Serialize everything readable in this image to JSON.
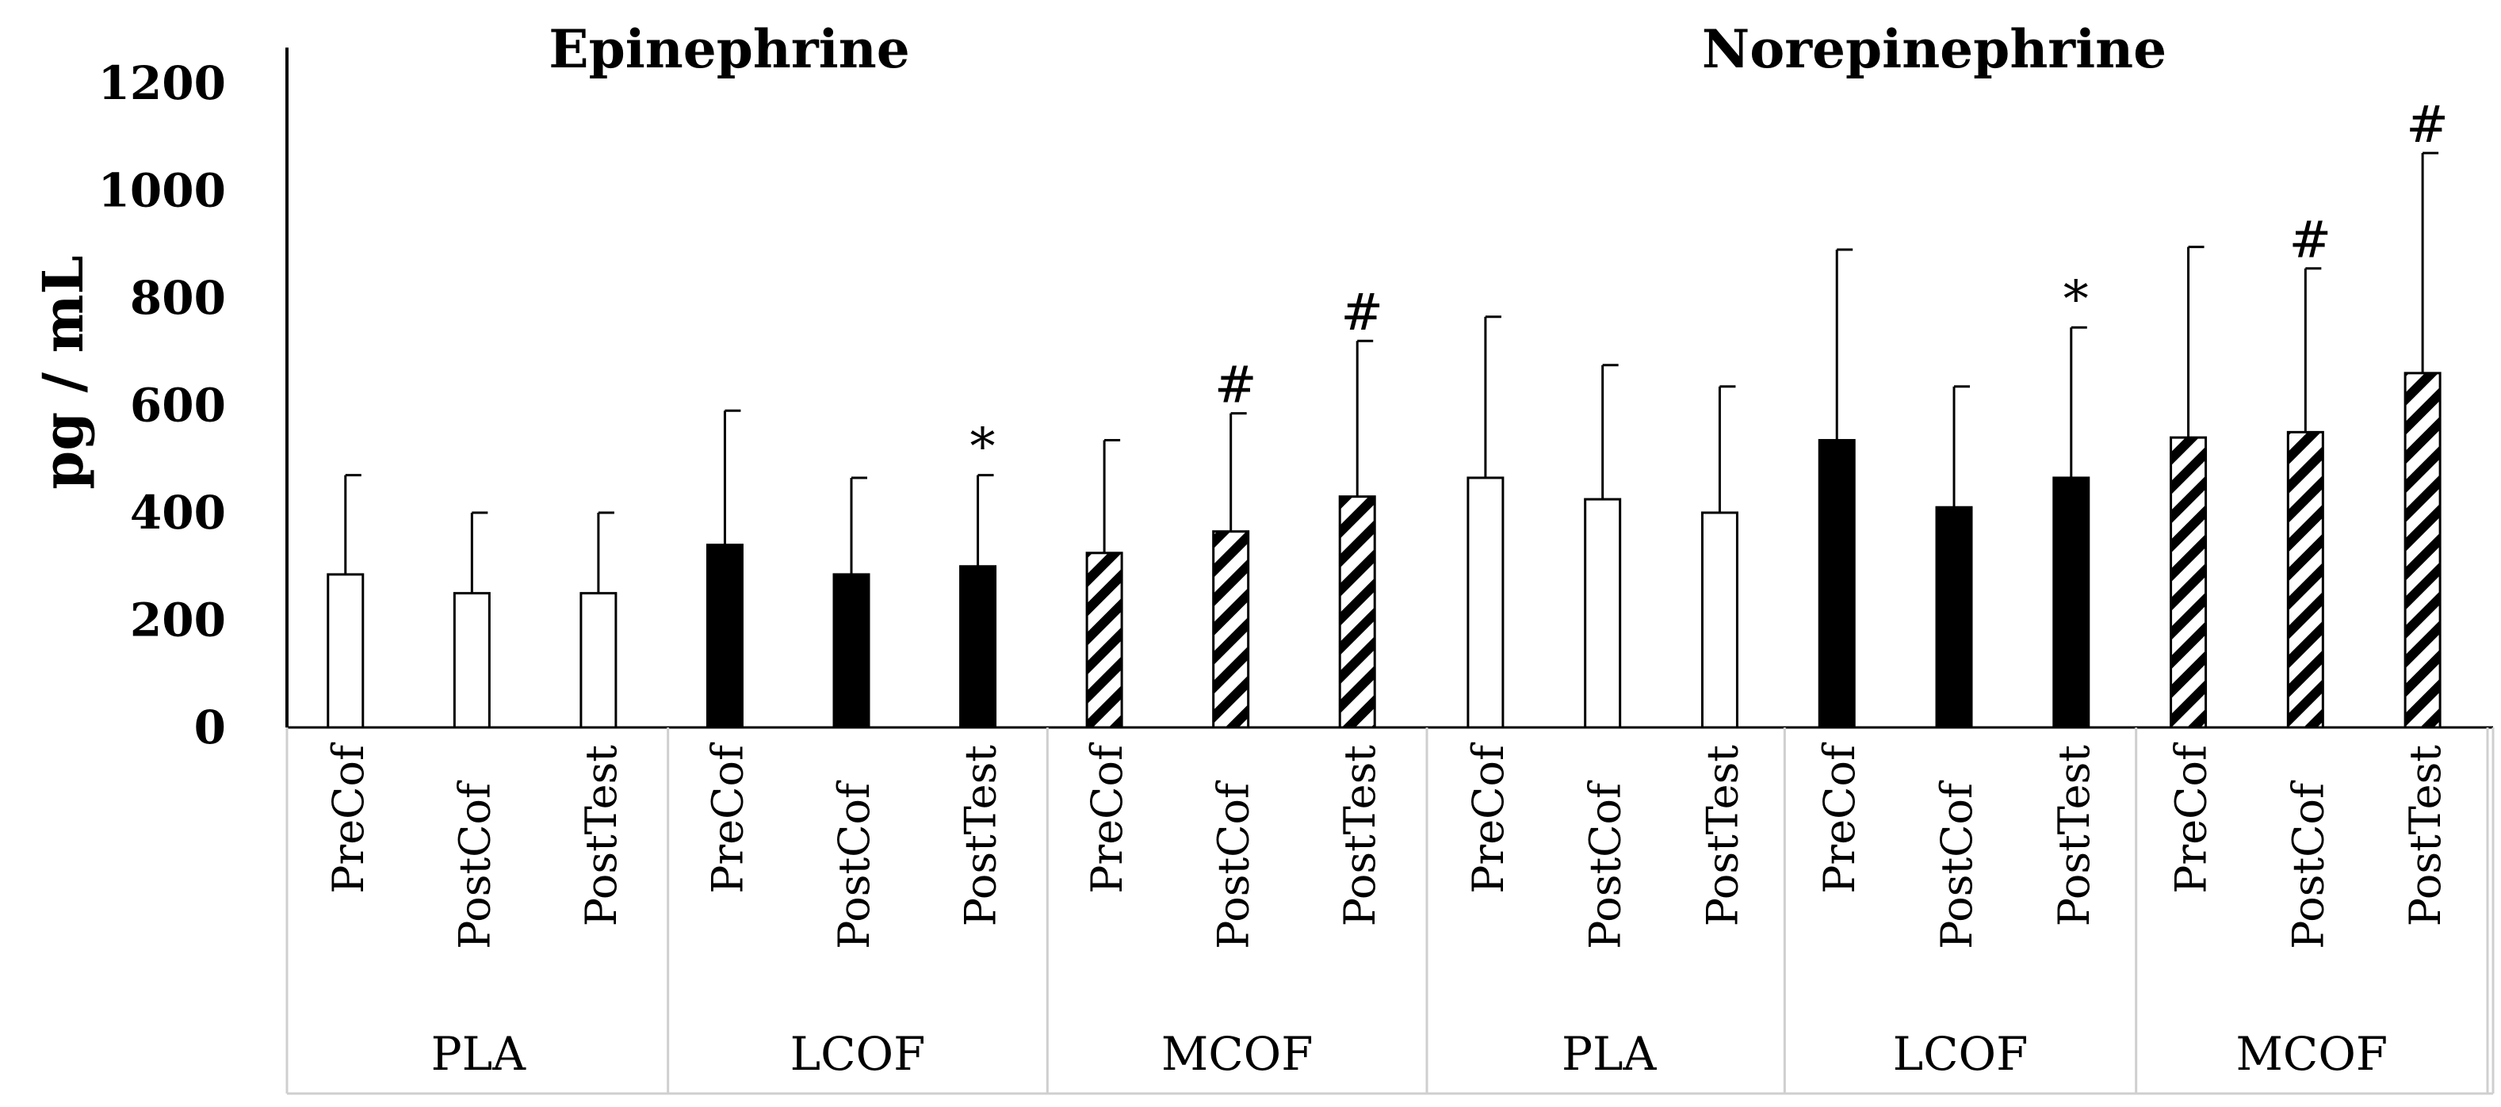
{
  "chart_data": {
    "type": "bar",
    "ylabel": "pg / mL",
    "ylim": [
      0,
      1200
    ],
    "yticks": [
      "0",
      "200",
      "400",
      "600",
      "800",
      "1000",
      "1200"
    ],
    "legend": "none",
    "fill_styles": {
      "PLA": "white",
      "LCOF": "black",
      "MCOF": "diagonal-stripes"
    },
    "panels": [
      {
        "title": "Epinephrine",
        "groups": [
          {
            "name": "PLA",
            "bars": [
              {
                "label": "PreCof",
                "value": 285,
                "error": 185,
                "annotation": ""
              },
              {
                "label": "PostCof",
                "value": 250,
                "error": 150,
                "annotation": ""
              },
              {
                "label": "PostTest",
                "value": 250,
                "error": 150,
                "annotation": ""
              }
            ]
          },
          {
            "name": "LCOF",
            "bars": [
              {
                "label": "PreCof",
                "value": 340,
                "error": 250,
                "annotation": ""
              },
              {
                "label": "PostCof",
                "value": 285,
                "error": 180,
                "annotation": ""
              },
              {
                "label": "PostTest",
                "value": 300,
                "error": 170,
                "annotation": "*"
              }
            ]
          },
          {
            "name": "MCOF",
            "bars": [
              {
                "label": "PreCof",
                "value": 325,
                "error": 210,
                "annotation": ""
              },
              {
                "label": "PostCof",
                "value": 365,
                "error": 220,
                "annotation": "#"
              },
              {
                "label": "PostTest",
                "value": 430,
                "error": 290,
                "annotation": "#"
              }
            ]
          }
        ]
      },
      {
        "title": "Norepinephrine",
        "groups": [
          {
            "name": "PLA",
            "bars": [
              {
                "label": "PreCof",
                "value": 465,
                "error": 300,
                "annotation": ""
              },
              {
                "label": "PostCof",
                "value": 425,
                "error": 250,
                "annotation": ""
              },
              {
                "label": "PostTest",
                "value": 400,
                "error": 235,
                "annotation": ""
              }
            ]
          },
          {
            "name": "LCOF",
            "bars": [
              {
                "label": "PreCof",
                "value": 535,
                "error": 355,
                "annotation": ""
              },
              {
                "label": "PostCof",
                "value": 410,
                "error": 225,
                "annotation": ""
              },
              {
                "label": "PostTest",
                "value": 465,
                "error": 280,
                "annotation": "*"
              }
            ]
          },
          {
            "name": "MCOF",
            "bars": [
              {
                "label": "PreCof",
                "value": 540,
                "error": 355,
                "annotation": ""
              },
              {
                "label": "PostCof",
                "value": 550,
                "error": 305,
                "annotation": "#"
              },
              {
                "label": "PostTest",
                "value": 660,
                "error": 410,
                "annotation": "#"
              }
            ]
          }
        ]
      }
    ]
  }
}
